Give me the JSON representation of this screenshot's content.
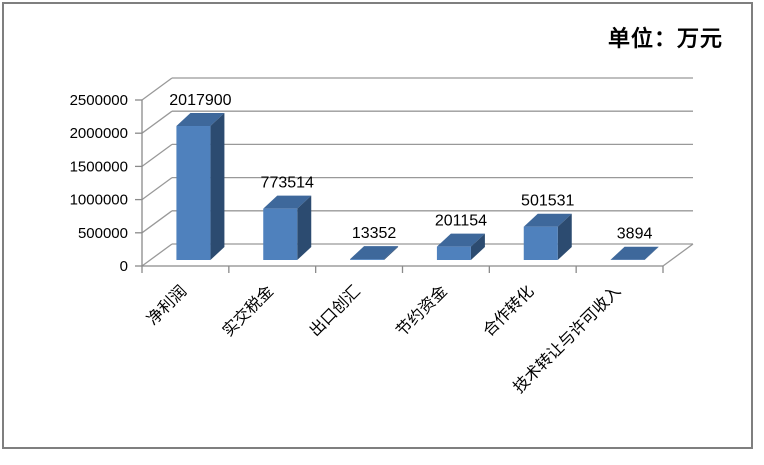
{
  "frame": {
    "border_color": "#7f7f7f",
    "background_color": "#ffffff"
  },
  "chart_data": {
    "type": "bar",
    "projection": "3d",
    "title": "",
    "unit": "单位：万元",
    "categories": [
      "净利润",
      "实交税金",
      "出口创汇",
      "节约资金",
      "合作转化",
      "技术转让与许可收入"
    ],
    "values": [
      2017900,
      773514,
      13352,
      201154,
      501531,
      3894
    ],
    "data_labels": [
      "2017900",
      "773514",
      "13352",
      "201154",
      "501531",
      "3894"
    ],
    "xlabel": "",
    "ylabel": "",
    "ylim": [
      0,
      2500000
    ],
    "y_tick_step": 500000,
    "y_tick_labels": [
      "0",
      "500000",
      "1000000",
      "1500000",
      "2000000",
      "2500000"
    ],
    "grid": true,
    "legend": "none",
    "category_label_rotation_deg": 45,
    "colors": {
      "bar_front": "#4f81bd",
      "bar_top": "#3e689b",
      "bar_side": "#2c4b70",
      "grid": "#999999",
      "axis": "#8a8a8a",
      "text": "#000000"
    }
  }
}
